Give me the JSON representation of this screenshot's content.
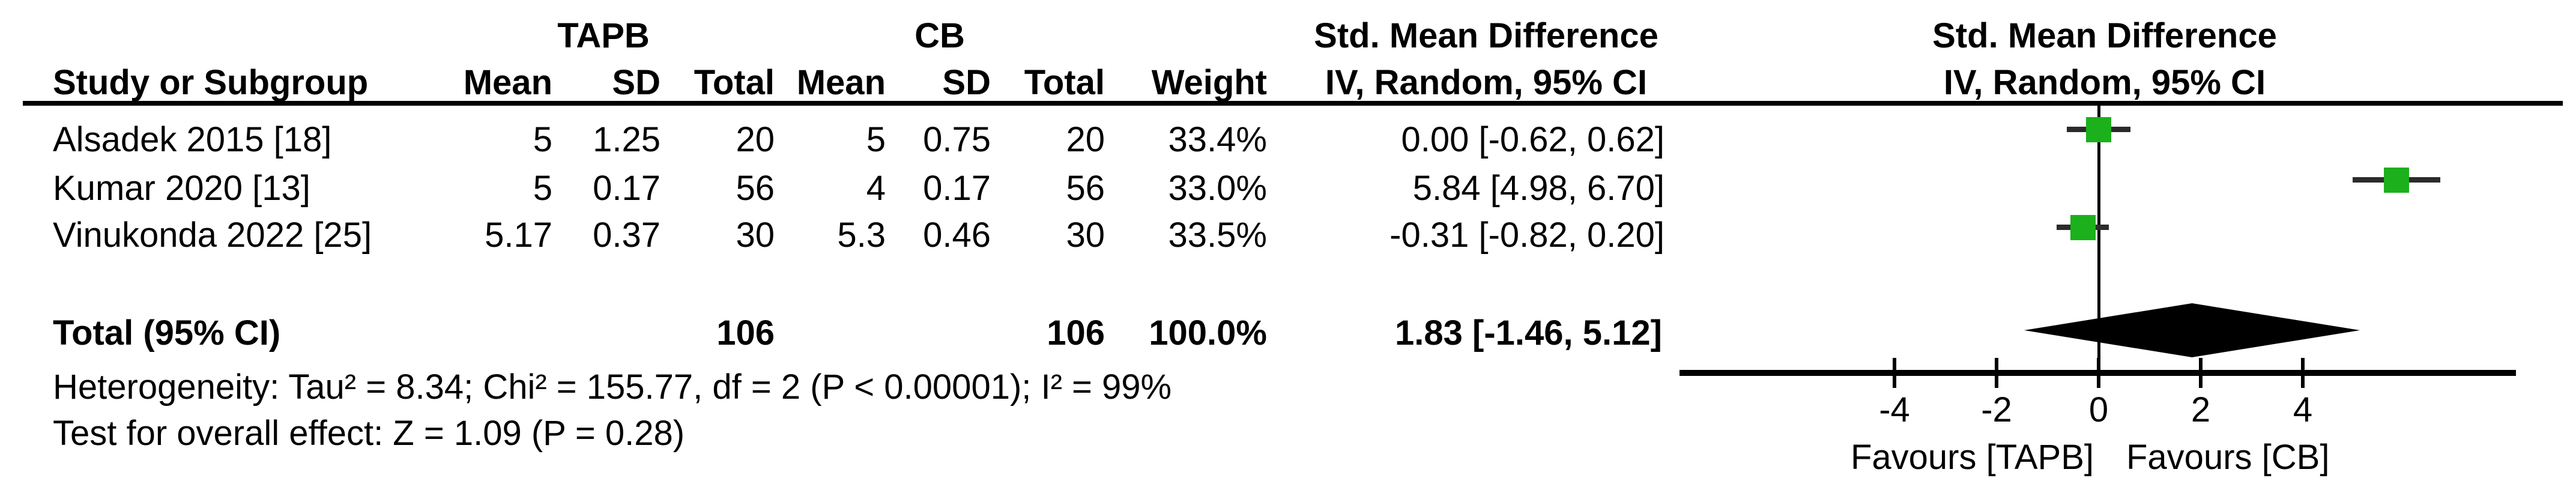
{
  "table": {
    "group1_header": "TAPB",
    "group2_header": "CB",
    "col_headers": {
      "study": "Study or Subgroup",
      "mean": "Mean",
      "sd": "SD",
      "total": "Total",
      "weight": "Weight"
    },
    "smd_header_line1": "Std. Mean Difference",
    "smd_header_line2": "IV, Random, 95% CI",
    "studies": [
      {
        "name": "Alsadek 2015 [18]",
        "mean1": "5",
        "sd1": "1.25",
        "total1": "20",
        "mean2": "5",
        "sd2": "0.75",
        "total2": "20",
        "weight": "33.4%",
        "ci_text": "0.00 [-0.62, 0.62]"
      },
      {
        "name": "Kumar 2020 [13]",
        "mean1": "5",
        "sd1": "0.17",
        "total1": "56",
        "mean2": "4",
        "sd2": "0.17",
        "total2": "56",
        "weight": "33.0%",
        "ci_text": "5.84 [4.98, 6.70]"
      },
      {
        "name": "Vinukonda 2022 [25]",
        "mean1": "5.17",
        "sd1": "0.37",
        "total1": "30",
        "mean2": "5.3",
        "sd2": "0.46",
        "total2": "30",
        "weight": "33.5%",
        "ci_text": "-0.31 [-0.82, 0.20]"
      }
    ],
    "total_row": {
      "label": "Total (95% CI)",
      "total1": "106",
      "total2": "106",
      "weight": "100.0%",
      "ci_text": "1.83 [-1.46, 5.12]"
    },
    "heterogeneity": "Heterogeneity: Tau² = 8.34; Chi² = 155.77, df = 2 (P < 0.00001); I² = 99%",
    "overall_effect": "Test for overall effect: Z = 1.09 (P = 0.28)"
  },
  "chart_data": {
    "type": "forest",
    "title": "Std. Mean Difference",
    "subtitle": "IV, Random, 95% CI",
    "studies": [
      {
        "name": "Alsadek 2015 [18]",
        "smd": 0.0,
        "ci_low": -0.62,
        "ci_high": 0.62,
        "weight_pct": 33.4
      },
      {
        "name": "Kumar 2020 [13]",
        "smd": 5.84,
        "ci_low": 4.98,
        "ci_high": 6.7,
        "weight_pct": 33.0
      },
      {
        "name": "Vinukonda 2022 [25]",
        "smd": -0.31,
        "ci_low": -0.82,
        "ci_high": 0.2,
        "weight_pct": 33.5
      }
    ],
    "total": {
      "smd": 1.83,
      "ci_low": -1.46,
      "ci_high": 5.12
    },
    "x_ticks": [
      -4,
      -2,
      0,
      2,
      4
    ],
    "xlim": [
      -8.2,
      8.2
    ],
    "favours_left": "Favours [TAPB]",
    "favours_right": "Favours [CB]",
    "marker_color": "#1cb01c",
    "diamond_color": "#000000",
    "axis_color": "#000000"
  }
}
